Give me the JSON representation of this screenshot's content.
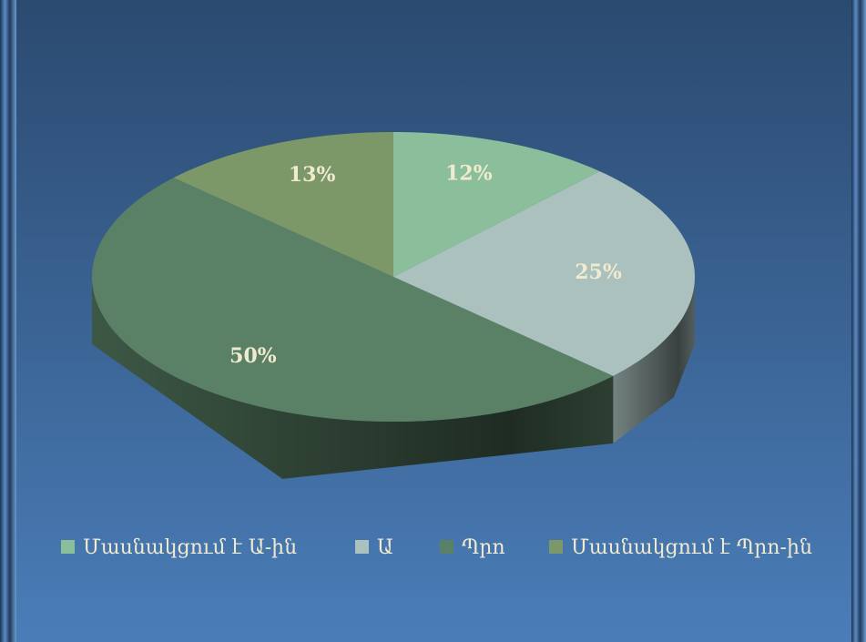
{
  "chart_data": {
    "type": "pie",
    "categories": [
      "Մասնակցում է Ա-ին",
      "Ա",
      "Պրո",
      "Մասնակցում է Պրո-ին"
    ],
    "values": [
      12,
      25,
      50,
      13
    ],
    "value_labels": [
      "12%",
      "25%",
      "50%",
      "13%"
    ],
    "colors": [
      "#8bbf9b",
      "#abc1be",
      "#5a8166",
      "#7d9868"
    ],
    "legend": "bottom"
  }
}
